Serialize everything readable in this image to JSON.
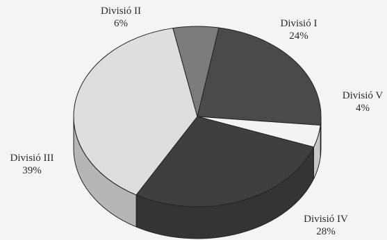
{
  "chart_data": {
    "type": "pie",
    "title": "",
    "slices": [
      {
        "name": "Divisió I",
        "value": 24,
        "label": "24%",
        "color": "#4a4a4a"
      },
      {
        "name": "Divisió V",
        "value": 4,
        "label": "4%",
        "color": "#f3f3f3"
      },
      {
        "name": "Divisió IV",
        "value": 28,
        "label": "28%",
        "color": "#3f3f3f"
      },
      {
        "name": "Divisió III",
        "value": 39,
        "label": "39%",
        "color": "#dedede"
      },
      {
        "name": "Divisió II",
        "value": 6,
        "label": "6%",
        "color": "#7c7c7c"
      }
    ],
    "style": "3d",
    "legend": "none"
  },
  "colors": {
    "background": "#f4f4f2",
    "outline": "#222222",
    "text": "#2a2a2a"
  }
}
